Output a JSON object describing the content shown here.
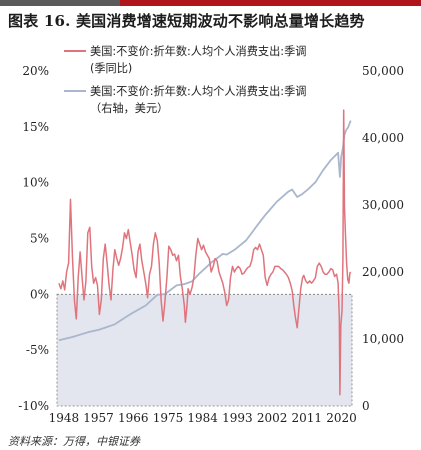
{
  "header": {
    "title": "图表 16. 美国消费增速短期波动不影响总量增长趋势",
    "source": "资料来源：万得，中银证券"
  },
  "colors": {
    "yoy_line": "#e0747d",
    "level_line": "#a9b6cd",
    "negative_band": "#e3e6ee",
    "top_bar_dark": "#5b5b5b",
    "top_bar_red": "#b0151c"
  },
  "chart_data": {
    "type": "line",
    "legend_position": "top-right",
    "grid": false,
    "x_ticks": [
      "1948",
      "1957",
      "1966",
      "1975",
      "1984",
      "1993",
      "2002",
      "2011",
      "2020"
    ],
    "x_range": [
      1947,
      2023.5
    ],
    "y_left": {
      "range": [
        -10,
        20
      ],
      "ticks": [
        "20%",
        "15%",
        "10%",
        "5%",
        "0%",
        "-5%",
        "-10%"
      ]
    },
    "y_right": {
      "range": [
        0,
        50000
      ],
      "ticks": [
        "50,000",
        "40,000",
        "30,000",
        "20,000",
        "10,000",
        "0"
      ]
    },
    "series": [
      {
        "name": "美国:不变价:折年数:人均个人消费支出:季调(季同比)",
        "legend_lines": [
          "美国:不变价:折年数:人均个人消费支出:季调",
          "(季同比)"
        ],
        "axis": "left",
        "points": [
          [
            1947.5,
            1.0
          ],
          [
            1948.0,
            0.5
          ],
          [
            1948.5,
            1.2
          ],
          [
            1949.0,
            0.4
          ],
          [
            1949.5,
            2.0
          ],
          [
            1950.0,
            2.8
          ],
          [
            1950.5,
            8.5
          ],
          [
            1951.0,
            3.5
          ],
          [
            1951.5,
            -0.5
          ],
          [
            1952.0,
            -2.2
          ],
          [
            1952.5,
            1.5
          ],
          [
            1953.0,
            3.8
          ],
          [
            1953.5,
            1.5
          ],
          [
            1954.0,
            -0.5
          ],
          [
            1954.5,
            1.2
          ],
          [
            1955.0,
            5.5
          ],
          [
            1955.5,
            6.0
          ],
          [
            1956.0,
            2.5
          ],
          [
            1956.5,
            1.0
          ],
          [
            1957.0,
            1.5
          ],
          [
            1957.5,
            0.8
          ],
          [
            1958.0,
            -1.8
          ],
          [
            1958.5,
            -0.5
          ],
          [
            1959.0,
            3.2
          ],
          [
            1959.5,
            4.5
          ],
          [
            1960.0,
            2.8
          ],
          [
            1960.5,
            0.8
          ],
          [
            1961.0,
            -0.5
          ],
          [
            1961.5,
            2.2
          ],
          [
            1962.0,
            4.0
          ],
          [
            1962.5,
            3.2
          ],
          [
            1963.0,
            2.6
          ],
          [
            1963.5,
            3.2
          ],
          [
            1964.0,
            4.2
          ],
          [
            1964.5,
            5.5
          ],
          [
            1965.0,
            5.0
          ],
          [
            1965.5,
            5.8
          ],
          [
            1966.0,
            4.6
          ],
          [
            1966.5,
            3.5
          ],
          [
            1967.0,
            2.2
          ],
          [
            1967.5,
            1.5
          ],
          [
            1968.0,
            3.8
          ],
          [
            1968.5,
            4.5
          ],
          [
            1969.0,
            3.0
          ],
          [
            1969.5,
            2.0
          ],
          [
            1970.0,
            1.0
          ],
          [
            1970.5,
            -0.3
          ],
          [
            1971.0,
            1.8
          ],
          [
            1971.5,
            2.5
          ],
          [
            1972.0,
            4.5
          ],
          [
            1972.5,
            5.5
          ],
          [
            1973.0,
            4.8
          ],
          [
            1973.5,
            2.8
          ],
          [
            1974.0,
            -0.5
          ],
          [
            1974.5,
            -2.4
          ],
          [
            1974.9,
            -1.0
          ],
          [
            1975.5,
            1.5
          ],
          [
            1976.0,
            4.3
          ],
          [
            1976.5,
            4.0
          ],
          [
            1977.0,
            3.5
          ],
          [
            1977.5,
            3.6
          ],
          [
            1978.0,
            3.0
          ],
          [
            1978.5,
            3.5
          ],
          [
            1979.0,
            1.6
          ],
          [
            1979.5,
            0.5
          ],
          [
            1980.0,
            -1.0
          ],
          [
            1980.3,
            -2.5
          ],
          [
            1980.7,
            -1.0
          ],
          [
            1981.0,
            0.5
          ],
          [
            1981.5,
            0.0
          ],
          [
            1982.0,
            0.6
          ],
          [
            1982.5,
            1.5
          ],
          [
            1983.0,
            3.5
          ],
          [
            1983.5,
            5.0
          ],
          [
            1984.0,
            4.5
          ],
          [
            1984.5,
            4.0
          ],
          [
            1985.0,
            4.4
          ],
          [
            1985.5,
            3.8
          ],
          [
            1986.0,
            3.5
          ],
          [
            1986.5,
            3.2
          ],
          [
            1987.0,
            2.0
          ],
          [
            1987.5,
            2.5
          ],
          [
            1988.0,
            3.2
          ],
          [
            1988.5,
            3.0
          ],
          [
            1989.0,
            2.0
          ],
          [
            1989.5,
            1.5
          ],
          [
            1990.0,
            1.0
          ],
          [
            1990.5,
            0.2
          ],
          [
            1991.0,
            -1.0
          ],
          [
            1991.5,
            -0.5
          ],
          [
            1992.0,
            1.5
          ],
          [
            1992.5,
            2.5
          ],
          [
            1993.0,
            2.0
          ],
          [
            1993.5,
            2.3
          ],
          [
            1994.0,
            2.5
          ],
          [
            1994.5,
            2.3
          ],
          [
            1995.0,
            1.8
          ],
          [
            1995.5,
            1.9
          ],
          [
            1996.0,
            2.2
          ],
          [
            1996.5,
            2.4
          ],
          [
            1997.0,
            2.5
          ],
          [
            1997.5,
            3.0
          ],
          [
            1998.0,
            4.0
          ],
          [
            1998.5,
            4.2
          ],
          [
            1999.0,
            4.0
          ],
          [
            1999.5,
            4.5
          ],
          [
            2000.0,
            4.0
          ],
          [
            2000.5,
            3.5
          ],
          [
            2001.0,
            1.5
          ],
          [
            2001.5,
            0.8
          ],
          [
            2002.0,
            1.5
          ],
          [
            2002.5,
            1.8
          ],
          [
            2003.0,
            2.0
          ],
          [
            2003.5,
            2.5
          ],
          [
            2004.0,
            2.5
          ],
          [
            2004.5,
            2.5
          ],
          [
            2005.0,
            2.3
          ],
          [
            2005.5,
            2.2
          ],
          [
            2006.0,
            2.0
          ],
          [
            2006.5,
            1.8
          ],
          [
            2007.0,
            1.5
          ],
          [
            2007.5,
            1.0
          ],
          [
            2008.0,
            0.3
          ],
          [
            2008.4,
            -1.0
          ],
          [
            2008.8,
            -2.0
          ],
          [
            2009.3,
            -3.0
          ],
          [
            2009.8,
            -1.0
          ],
          [
            2010.2,
            0.5
          ],
          [
            2010.7,
            1.5
          ],
          [
            2011.0,
            1.7
          ],
          [
            2011.5,
            1.2
          ],
          [
            2012.0,
            1.0
          ],
          [
            2012.5,
            1.2
          ],
          [
            2013.0,
            1.0
          ],
          [
            2013.5,
            1.2
          ],
          [
            2014.0,
            1.5
          ],
          [
            2014.5,
            2.5
          ],
          [
            2015.0,
            2.8
          ],
          [
            2015.5,
            2.5
          ],
          [
            2016.0,
            2.0
          ],
          [
            2016.5,
            1.8
          ],
          [
            2017.0,
            1.8
          ],
          [
            2017.5,
            2.0
          ],
          [
            2018.0,
            2.3
          ],
          [
            2018.5,
            2.2
          ],
          [
            2019.0,
            1.6
          ],
          [
            2019.5,
            1.8
          ],
          [
            2019.9,
            1.0
          ],
          [
            2020.2,
            -2.0
          ],
          [
            2020.35,
            -9.0
          ],
          [
            2020.6,
            -2.8
          ],
          [
            2020.9,
            -1.5
          ],
          [
            2021.15,
            3.0
          ],
          [
            2021.35,
            16.5
          ],
          [
            2021.55,
            7.8
          ],
          [
            2021.8,
            5.5
          ],
          [
            2022.1,
            2.8
          ],
          [
            2022.4,
            1.3
          ],
          [
            2022.7,
            1.0
          ],
          [
            2022.95,
            1.9
          ],
          [
            2023.15,
            2.0
          ]
        ]
      },
      {
        "name": "美国:不变价:折年数:人均个人消费支出:季调(右轴，美元)",
        "legend_lines": [
          "美国:不变价:折年数:人均个人消费支出:季调",
          "（右轴，美元）"
        ],
        "axis": "right",
        "points": [
          [
            1947.5,
            9800
          ],
          [
            1951.0,
            10300
          ],
          [
            1955.0,
            11000
          ],
          [
            1958.0,
            11400
          ],
          [
            1962.0,
            12200
          ],
          [
            1966.0,
            13700
          ],
          [
            1970.0,
            15000
          ],
          [
            1973.0,
            16600
          ],
          [
            1975.0,
            16700
          ],
          [
            1978.0,
            18000
          ],
          [
            1980.0,
            18200
          ],
          [
            1982.0,
            18600
          ],
          [
            1984.0,
            19800
          ],
          [
            1987.0,
            21400
          ],
          [
            1990.0,
            22700
          ],
          [
            1991.0,
            22600
          ],
          [
            1993.0,
            23300
          ],
          [
            1996.0,
            24700
          ],
          [
            1999.0,
            27000
          ],
          [
            2001.0,
            28500
          ],
          [
            2004.0,
            30500
          ],
          [
            2007.0,
            32000
          ],
          [
            2008.0,
            32300
          ],
          [
            2009.3,
            31200
          ],
          [
            2010.5,
            31600
          ],
          [
            2012.0,
            32300
          ],
          [
            2014.0,
            33400
          ],
          [
            2016.0,
            35200
          ],
          [
            2018.0,
            36700
          ],
          [
            2019.9,
            37800
          ],
          [
            2020.35,
            34200
          ],
          [
            2020.7,
            37200
          ],
          [
            2021.15,
            38500
          ],
          [
            2021.5,
            40400
          ],
          [
            2022.0,
            41200
          ],
          [
            2022.5,
            41600
          ],
          [
            2023.15,
            42600
          ]
        ]
      }
    ]
  }
}
